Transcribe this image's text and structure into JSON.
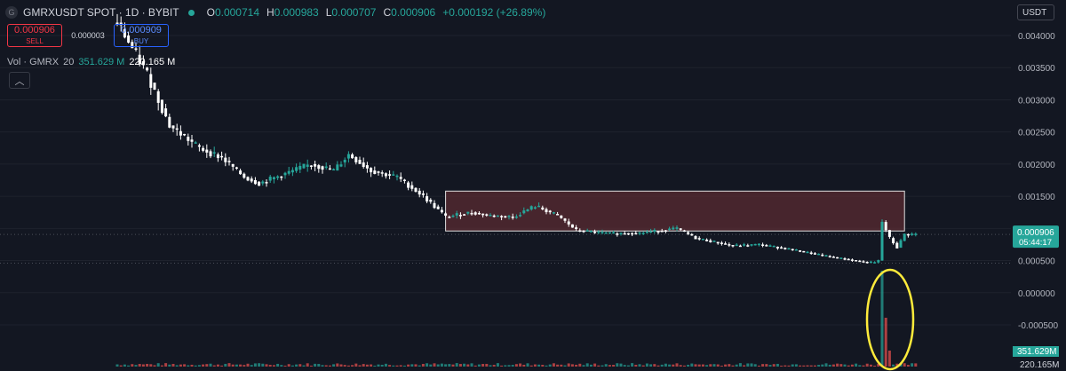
{
  "header": {
    "symbol": "GMRXUSDT SPOT · 1D · BYBIT",
    "symbol_icon": "G",
    "ohlc": [
      {
        "k": "O",
        "v": "0.000714"
      },
      {
        "k": "H",
        "v": "0.000983"
      },
      {
        "k": "L",
        "v": "0.000707"
      },
      {
        "k": "C",
        "v": "0.000906"
      }
    ],
    "change": "+0.000192 (+26.89%)"
  },
  "trade": {
    "sell_price": "0.000906",
    "sell_label": "SELL",
    "spread": "0.000003",
    "buy_price": "0.000909",
    "buy_label": "BUY"
  },
  "volume_legend": {
    "name": "Vol · GMRX",
    "period": "20",
    "value": "351.629 M",
    "ma": "220.165 M"
  },
  "currency": "USDT",
  "colors": {
    "up": "#26a69a",
    "down": "#ef5350",
    "candle_body": "#ffffff",
    "zone": "#5a2b32",
    "highlight_circle": "#ffeb3b",
    "price_label": "#26a69a"
  },
  "chart_data": {
    "type": "candlestick",
    "title": "GMRXUSDT SPOT · 1D · BYBIT",
    "y_axis_ticks": [
      "0.004000",
      "0.003500",
      "0.003000",
      "0.002500",
      "0.002000",
      "0.001500",
      "0.001000",
      "0.000500",
      "0.000000",
      "-0.000500"
    ],
    "ylim": [
      -0.00085,
      0.00427
    ],
    "last_price": "0.000906",
    "countdown": "05:44:17",
    "volume_labels": {
      "volume": "351.629M",
      "ma": "220.165M"
    },
    "zone": {
      "y_top": 0.00158,
      "y_bottom": 0.00096,
      "x_start": 88,
      "x_end": 211
    },
    "n_bars": 215,
    "price_path": [
      [
        0,
        0.0042
      ],
      [
        8,
        0.0034
      ],
      [
        14,
        0.0026
      ],
      [
        22,
        0.00225
      ],
      [
        28,
        0.0021
      ],
      [
        34,
        0.0018
      ],
      [
        38,
        0.0017
      ],
      [
        45,
        0.00185
      ],
      [
        52,
        0.002
      ],
      [
        58,
        0.0019
      ],
      [
        62,
        0.00215
      ],
      [
        68,
        0.0019
      ],
      [
        75,
        0.0018
      ],
      [
        82,
        0.0015
      ],
      [
        88,
        0.00118
      ],
      [
        95,
        0.00125
      ],
      [
        100,
        0.0012
      ],
      [
        106,
        0.00118
      ],
      [
        112,
        0.00135
      ],
      [
        118,
        0.0012
      ],
      [
        123,
        0.00097
      ],
      [
        132,
        0.00092
      ],
      [
        140,
        0.00093
      ],
      [
        146,
        0.00097
      ],
      [
        150,
        0.001
      ],
      [
        155,
        0.00085
      ],
      [
        165,
        0.00073
      ],
      [
        172,
        0.00075
      ],
      [
        180,
        0.00068
      ],
      [
        190,
        0.00057
      ],
      [
        200,
        0.00048
      ],
      [
        203,
        0.00047
      ],
      [
        204,
        0.0005
      ],
      [
        205,
        0.0011
      ],
      [
        207,
        0.00085
      ],
      [
        209,
        0.0007
      ],
      [
        211,
        0.00091
      ]
    ],
    "volume": {
      "baseline": "small",
      "spike_index": 205,
      "spike_color": "#26a69a",
      "second_spike_color": "#ef5350"
    }
  }
}
